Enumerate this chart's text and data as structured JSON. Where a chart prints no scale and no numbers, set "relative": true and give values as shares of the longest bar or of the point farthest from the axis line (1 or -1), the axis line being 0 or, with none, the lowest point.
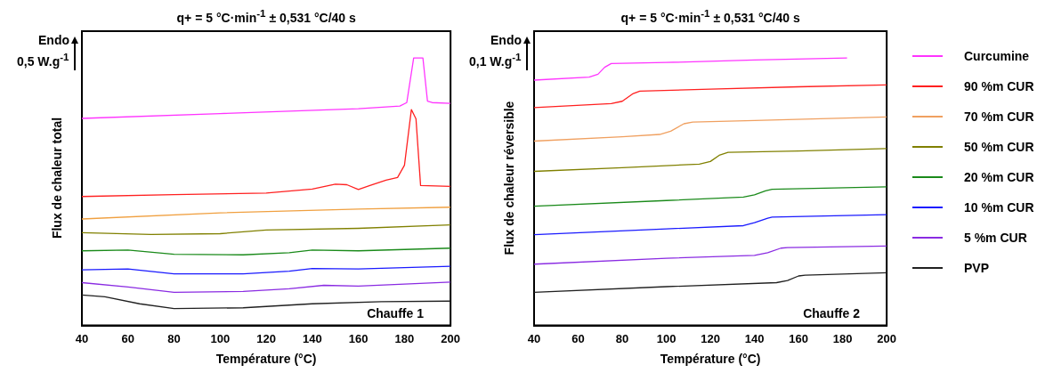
{
  "chart_data": [
    {
      "type": "line",
      "title": "q+ = 5 °C·min$^{-1}$ ± 0,531 °C/40 s",
      "xlabel": "Température (°C)",
      "ylabel": "Flux de chaleur total",
      "relative": true,
      "xlim": [
        40,
        200
      ],
      "xticks": [
        40,
        60,
        80,
        100,
        120,
        140,
        160,
        180,
        200
      ],
      "annotations": [
        "Endo",
        "0,5 W.g$^{-1}$",
        "Chauffe 1"
      ],
      "series": [
        {
          "color": "#ff33ff",
          "x": [
            40,
            100,
            160,
            178,
            181,
            184,
            188,
            190,
            192,
            200
          ],
          "values": [
            0.774,
            0.792,
            0.81,
            0.82,
            0.833,
            1,
            1,
            0.838,
            0.833,
            0.83
          ]
        },
        {
          "color": "#ff2020",
          "x": [
            40,
            80,
            120,
            140,
            150,
            155,
            160,
            165,
            172,
            177,
            180,
            183,
            185,
            187,
            200
          ],
          "values": [
            0.482,
            0.489,
            0.495,
            0.51,
            0.528,
            0.526,
            0.508,
            0.523,
            0.543,
            0.553,
            0.599,
            0.807,
            0.772,
            0.523,
            0.52
          ]
        },
        {
          "color": "#f0a040",
          "x": [
            40,
            100,
            160,
            200
          ],
          "values": [
            0.398,
            0.421,
            0.435,
            0.442
          ]
        },
        {
          "color": "#808000",
          "x": [
            40,
            70,
            100,
            120,
            160,
            200
          ],
          "values": [
            0.347,
            0.34,
            0.343,
            0.357,
            0.363,
            0.376
          ]
        },
        {
          "color": "#1a8a1a",
          "x": [
            40,
            60,
            80,
            110,
            130,
            140,
            160,
            200
          ],
          "values": [
            0.279,
            0.282,
            0.266,
            0.264,
            0.272,
            0.282,
            0.279,
            0.289
          ]
        },
        {
          "color": "#1a1aff",
          "x": [
            40,
            60,
            80,
            110,
            130,
            140,
            160,
            200
          ],
          "values": [
            0.208,
            0.211,
            0.193,
            0.193,
            0.203,
            0.213,
            0.211,
            0.221
          ]
        },
        {
          "color": "#8a2be2",
          "x": [
            40,
            60,
            80,
            110,
            130,
            145,
            160,
            200
          ],
          "values": [
            0.16,
            0.144,
            0.124,
            0.127,
            0.137,
            0.15,
            0.147,
            0.162
          ]
        },
        {
          "color": "#202020",
          "x": [
            40,
            50,
            65,
            80,
            110,
            140,
            170,
            200
          ],
          "values": [
            0.114,
            0.107,
            0.081,
            0.063,
            0.066,
            0.081,
            0.089,
            0.091
          ]
        }
      ]
    },
    {
      "type": "line",
      "title": "q+ = 5 °C·min$^{-1}$ ± 0,531 °C/40 s",
      "xlabel": "Température (°C)",
      "ylabel": "Flux de chaleur réversible",
      "relative": true,
      "legend": "right",
      "xlim": [
        40,
        200
      ],
      "xticks": [
        40,
        60,
        80,
        100,
        120,
        140,
        160,
        180,
        200
      ],
      "annotations": [
        "Endo",
        "0,1 W.g$^{-1}$",
        "Chauffe 2"
      ],
      "series": [
        {
          "name": "Curcumine",
          "color": "#ff33ff",
          "x": [
            40,
            65,
            69,
            72,
            75,
            100,
            140,
            182
          ],
          "values": [
            0.917,
            0.928,
            0.939,
            0.965,
            0.979,
            0.983,
            0.992,
            1
          ]
        },
        {
          "name": "90 %m CUR",
          "color": "#ff2020",
          "x": [
            40,
            75,
            80,
            85,
            88,
            120,
            160,
            200
          ],
          "values": [
            0.814,
            0.829,
            0.838,
            0.867,
            0.876,
            0.883,
            0.892,
            0.899
          ]
        },
        {
          "name": "70 %m CUR",
          "color": "#f0a060",
          "x": [
            40,
            80,
            97,
            102,
            108,
            112,
            140,
            200
          ],
          "values": [
            0.689,
            0.705,
            0.714,
            0.726,
            0.754,
            0.76,
            0.766,
            0.779
          ]
        },
        {
          "name": "50 %m CUR",
          "color": "#808000",
          "x": [
            40,
            80,
            115,
            120,
            124,
            128,
            160,
            200
          ],
          "values": [
            0.576,
            0.59,
            0.603,
            0.613,
            0.636,
            0.647,
            0.652,
            0.661
          ]
        },
        {
          "name": "20 %m CUR",
          "color": "#1a8a1a",
          "x": [
            40,
            100,
            135,
            140,
            145,
            148,
            200
          ],
          "values": [
            0.446,
            0.467,
            0.48,
            0.488,
            0.503,
            0.509,
            0.518
          ]
        },
        {
          "name": "10 %m CUR",
          "color": "#1a1aff",
          "x": [
            40,
            100,
            135,
            140,
            146,
            148,
            200
          ],
          "values": [
            0.339,
            0.361,
            0.373,
            0.384,
            0.401,
            0.405,
            0.414
          ]
        },
        {
          "name": "5 %m CUR",
          "color": "#8a2be2",
          "x": [
            40,
            100,
            140,
            146,
            152,
            155,
            200
          ],
          "values": [
            0.229,
            0.251,
            0.262,
            0.272,
            0.289,
            0.291,
            0.297
          ]
        },
        {
          "name": "PVP",
          "color": "#202020",
          "x": [
            40,
            100,
            150,
            155,
            160,
            163,
            200
          ],
          "values": [
            0.124,
            0.145,
            0.16,
            0.168,
            0.185,
            0.188,
            0.197
          ]
        }
      ]
    }
  ]
}
